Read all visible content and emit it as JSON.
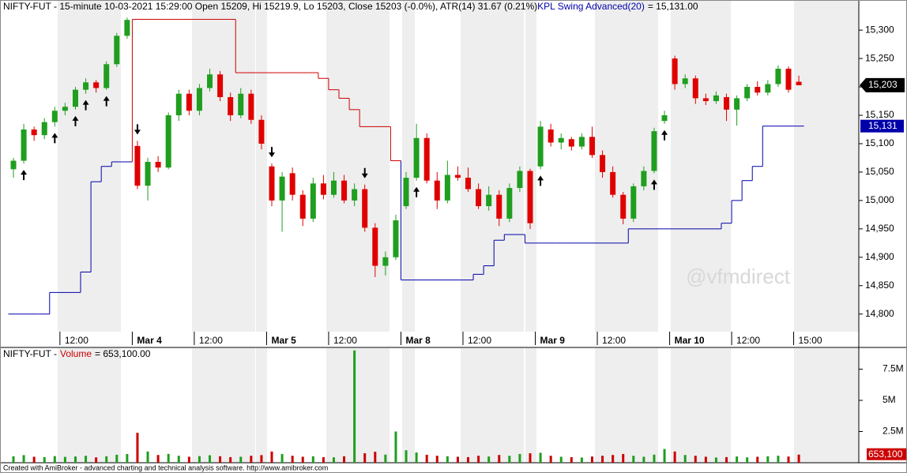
{
  "chart_data": [
    {
      "type": "candlestick",
      "title": "NIFTY-FUT - 15-minute 10-03-2021 15:29:00 Open 15209, Hi 15219.9, Lo 15203, Close 15203 (-0.0%), ATR(14) 31.67  (0.21%)",
      "up_color": "#1f9e1f",
      "down_color": "#e00000",
      "candles": [
        [
          15055,
          15075,
          15040,
          15070
        ],
        [
          15070,
          15135,
          15065,
          15125
        ],
        [
          15125,
          15130,
          15105,
          15115
        ],
        [
          15115,
          15145,
          15108,
          15138
        ],
        [
          15138,
          15165,
          15130,
          15158
        ],
        [
          15158,
          15172,
          15150,
          15165
        ],
        [
          15165,
          15200,
          15160,
          15195
        ],
        [
          15195,
          15215,
          15188,
          15208
        ],
        [
          15208,
          15212,
          15190,
          15198
        ],
        [
          15198,
          15245,
          15195,
          15240
        ],
        [
          15240,
          15295,
          15235,
          15290
        ],
        [
          15290,
          15322,
          15285,
          15318
        ],
        [
          15096,
          15105,
          15020,
          15026
        ],
        [
          15026,
          15075,
          15000,
          15068
        ],
        [
          15068,
          15078,
          15050,
          15058
        ],
        [
          15058,
          15155,
          15055,
          15150
        ],
        [
          15150,
          15195,
          15140,
          15188
        ],
        [
          15188,
          15195,
          15150,
          15158
        ],
        [
          15158,
          15205,
          15150,
          15198
        ],
        [
          15198,
          15232,
          15192,
          15222
        ],
        [
          15222,
          15228,
          15175,
          15182
        ],
        [
          15182,
          15190,
          15140,
          15150
        ],
        [
          15150,
          15198,
          15145,
          15188
        ],
        [
          15188,
          15195,
          15135,
          15142
        ],
        [
          15142,
          15150,
          15090,
          15100
        ],
        [
          15060,
          15065,
          14990,
          15000
        ],
        [
          15000,
          15050,
          14945,
          15042
        ],
        [
          15048,
          15058,
          15000,
          15010
        ],
        [
          15010,
          15018,
          14955,
          14968
        ],
        [
          14968,
          15040,
          14962,
          15030
        ],
        [
          15030,
          15045,
          15002,
          15010
        ],
        [
          15010,
          15050,
          15005,
          15035
        ],
        [
          15035,
          15045,
          14995,
          15000
        ],
        [
          15000,
          15030,
          14990,
          15020
        ],
        [
          15020,
          15028,
          14945,
          14952
        ],
        [
          14952,
          14960,
          14865,
          14885
        ],
        [
          14885,
          14910,
          14868,
          14900
        ],
        [
          14900,
          14975,
          14895,
          14965
        ],
        [
          14990,
          15050,
          14985,
          15040
        ],
        [
          15040,
          15135,
          15035,
          15110
        ],
        [
          15110,
          15118,
          15030,
          15035
        ],
        [
          15035,
          15050,
          14985,
          15000
        ],
        [
          15000,
          15070,
          14995,
          15045
        ],
        [
          15045,
          15060,
          15035,
          15040
        ],
        [
          15040,
          15058,
          15015,
          15020
        ],
        [
          15020,
          15030,
          14985,
          14990
        ],
        [
          14990,
          15025,
          14982,
          15010
        ],
        [
          15010,
          15018,
          14955,
          14968
        ],
        [
          14968,
          15030,
          14962,
          15022
        ],
        [
          15022,
          15060,
          15015,
          15052
        ],
        [
          15052,
          15056,
          14950,
          14960
        ],
        [
          15060,
          15140,
          15055,
          15130
        ],
        [
          15125,
          15135,
          15095,
          15102
        ],
        [
          15102,
          15118,
          15090,
          15110
        ],
        [
          15108,
          15112,
          15088,
          15095
        ],
        [
          15095,
          15118,
          15090,
          15112
        ],
        [
          15112,
          15130,
          15075,
          15080
        ],
        [
          15080,
          15088,
          15040,
          15050
        ],
        [
          15050,
          15060,
          15005,
          15010
        ],
        [
          15010,
          15015,
          14958,
          14968
        ],
        [
          14968,
          15030,
          14962,
          15025
        ],
        [
          15025,
          15060,
          15018,
          15052
        ],
        [
          15052,
          15128,
          15048,
          15122
        ],
        [
          15140,
          15158,
          15135,
          15150
        ],
        [
          15250,
          15255,
          15195,
          15205
        ],
        [
          15205,
          15222,
          15198,
          15215
        ],
        [
          15215,
          15220,
          15170,
          15180
        ],
        [
          15180,
          15188,
          15168,
          15175
        ],
        [
          15175,
          15192,
          15170,
          15185
        ],
        [
          15182,
          15188,
          15140,
          15160
        ],
        [
          15160,
          15185,
          15132,
          15180
        ],
        [
          15180,
          15205,
          15175,
          15200
        ],
        [
          15200,
          15210,
          15185,
          15190
        ],
        [
          15190,
          15212,
          15185,
          15205
        ],
        [
          15205,
          15238,
          15200,
          15232
        ],
        [
          15232,
          15236,
          15190,
          15195
        ],
        [
          15209,
          15219.9,
          15203,
          15203
        ]
      ],
      "close_label": "15,203",
      "series": [
        {
          "name": "KPL Swing Advanced(20)",
          "color": "#0000aa",
          "alt_color": "#cc0000",
          "value_label": "= 15,131.00",
          "tag_label": "15,131",
          "values": [
            14800,
            14800,
            14800,
            14800,
            14838,
            14838,
            14838,
            14874,
            15033,
            15060,
            15068,
            15068,
            15319,
            15319,
            15319,
            15319,
            15319,
            15319,
            15319,
            15319,
            15319,
            15319,
            15225,
            15225,
            15225,
            15225,
            15225,
            15225,
            15225,
            15225,
            15215,
            15195,
            15180,
            15160,
            15130,
            15130,
            15130,
            15070,
            14860,
            14860,
            14860,
            14860,
            14860,
            14860,
            14860,
            14870,
            14885,
            14930,
            14940,
            14940,
            14925,
            14925,
            14925,
            14925,
            14925,
            14925,
            14925,
            14925,
            14925,
            14925,
            14950,
            14950,
            14950,
            14950,
            14950,
            14950,
            14950,
            14950,
            14950,
            14960,
            15000,
            15035,
            15060,
            15131,
            15131,
            15131,
            15131
          ]
        }
      ],
      "buy_signals": [
        1,
        4,
        6,
        7,
        9,
        39,
        51,
        62,
        63
      ],
      "sell_signals": [
        12,
        25,
        34
      ],
      "x_labels": [
        {
          "at": 4.5,
          "label": "12:00"
        },
        {
          "at": 11.5,
          "label": "Mar 4"
        },
        {
          "at": 17.5,
          "label": "12:00"
        },
        {
          "at": 24.5,
          "label": "Mar 5"
        },
        {
          "at": 30.5,
          "label": "12:00"
        },
        {
          "at": 37.5,
          "label": "Mar 8"
        },
        {
          "at": 43.5,
          "label": "12:00"
        },
        {
          "at": 50.5,
          "label": "Mar 9"
        },
        {
          "at": 56.5,
          "label": "12:00"
        },
        {
          "at": 63.5,
          "label": "Mar 10"
        },
        {
          "at": 69.5,
          "label": "12:00"
        },
        {
          "at": 75.5,
          "label": "15:00"
        }
      ],
      "ylim": [
        14769,
        15328
      ],
      "yticks": [
        {
          "value": 14800,
          "label": "14,800"
        },
        {
          "value": 14850,
          "label": "14,850"
        },
        {
          "value": 14900,
          "label": "14,900"
        },
        {
          "value": 14950,
          "label": "14,950"
        },
        {
          "value": 15000,
          "label": "15,000"
        },
        {
          "value": 15050,
          "label": "15,050"
        },
        {
          "value": 15100,
          "label": "15,100"
        },
        {
          "value": 15150,
          "label": "15,150"
        },
        {
          "value": 15200,
          "label": "15,200"
        },
        {
          "value": 15250,
          "label": "15,250"
        },
        {
          "value": 15300,
          "label": "15,300"
        }
      ]
    },
    {
      "type": "bar",
      "title": "NIFTY-FUT -",
      "series": [
        {
          "name": "Volume",
          "color": "#cc0000",
          "value_label": "= 653,100.00",
          "tag_label": "653,100",
          "values": [
            520000,
            610000,
            480000,
            450000,
            530000,
            470000,
            500000,
            560000,
            430000,
            520000,
            640000,
            700000,
            2400000,
            900000,
            620000,
            710000,
            560000,
            480000,
            530000,
            600000,
            520000,
            450000,
            480000,
            560000,
            610000,
            900000,
            700000,
            560000,
            480000,
            520000,
            450000,
            430000,
            520000,
            9000000,
            760000,
            880000,
            650000,
            2500000,
            1000000,
            820000,
            640000,
            560000,
            520000,
            480000,
            450000,
            560000,
            500000,
            620000,
            560000,
            700000,
            760000,
            800000,
            560000,
            480000,
            450000,
            420000,
            500000,
            560000,
            620000,
            700000,
            560000,
            480000,
            650000,
            1100000,
            900000,
            620000,
            560000,
            480000,
            420000,
            450000,
            500000,
            430000,
            480000,
            520000,
            560000,
            500000,
            653100
          ]
        }
      ],
      "ylim": [
        0,
        9050000
      ],
      "yticks": [
        {
          "value": 2500000,
          "label": "2.5M"
        },
        {
          "value": 5000000,
          "label": "5M"
        },
        {
          "value": 7500000,
          "label": "7.5M"
        }
      ]
    }
  ],
  "watermark": "@vfmdirect",
  "footer": "Created with AmiBroker - advanced charting and technical analysis software. http://www.amibroker.com"
}
